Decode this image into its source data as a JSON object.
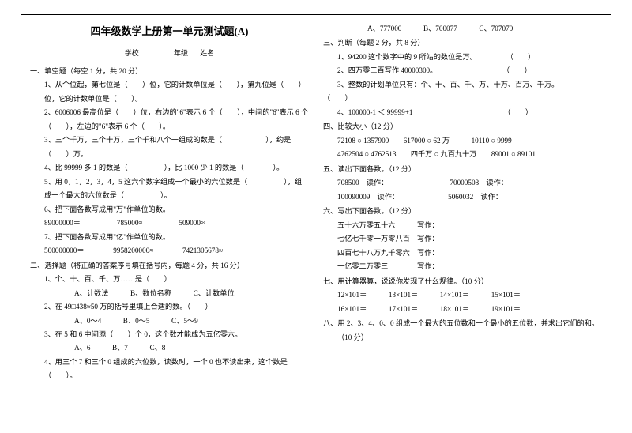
{
  "title": "四年级数学上册第一单元测试题(A)",
  "meta": {
    "school": "学校",
    "grade": "年级",
    "name": "姓名"
  },
  "left": {
    "s1": {
      "h": "一、填空题（每空 1 分，共 20 分）",
      "q1": "1、从个位起，第七位是（　　）位，它的计数单位是（　　），第九位是（　　）位，它的计数单位是（　　）。",
      "q2": "2、6006006 最高位是（　　）位，右边的\"6\"表示 6 个（　　），中间的\"6\"表示 6 个（　　），左边的\"6\"表示 6 个（　　）。",
      "q3": "3、三个千万，三个十万，三个千和八个一组成的数是（　　　　　　），约是（　　）万。",
      "q4": "4、比 99999 多 1 的数是（　　　　　），比 1000 少 1 的数是（　　　　）。",
      "q5": "5、用 0，1，2，3，4，5 这六个数字组成一个最小的六位数是（　　　　　），组成一个最大的六位数是（　　　　　）。",
      "q6": "6、把下面各数写成用\"万\"作单位的数。",
      "q6a": "89000000＝　　　　　785000≈　　　　　509000≈",
      "q7": "7、把下面各数写成用\"亿\"作单位的数。",
      "q7a": "500000000＝　　　　9958200000≈　　　　7421305678≈"
    },
    "s2": {
      "h": "二、选择题（将正确的答案序号填在括号内，每题 4 分，共 16 分）",
      "q1": "1、个、十、百、千、万……是（　　）",
      "q1o": "A、计数法　　　B、数位名称　　　C、计数单位",
      "q2": "2、在 49□438≈50 万的括号里填上合适的数。（　　）",
      "q2o": "A、0～4　　　B、0～5　　　C、5～9",
      "q3": "3、在 5 和 6 中间添（　　）个 0，这个数才能成为五亿零六。",
      "q3o": "A、6　　　B、7　　　C、8",
      "q4": "4、用三个 7 和三个 0 组成的六位数，读数时，一个 0 也不读出来，这个数是（　　）。"
    }
  },
  "right": {
    "top": "A、777000　　　B、700077　　　C、707070",
    "s3": {
      "h": "三、判断（每题 2 分，共 8 分）",
      "q1": "1、94200 这个数字中的 9 所站的数位是万。　　　　　（　　）",
      "q2": "2、四万零三百写作 40000300。　　　　　　　　　　（　　）",
      "q3": "3、整数的计划单位只有：个、十、百、千、万、十万、百万、千万。",
      "q3p": "（　　）",
      "q4": "4、100000-1 ＜ 99999+1　　　　　　　　　　　　　（　　）"
    },
    "s4": {
      "h": "四、比较大小（12 分）",
      "r1": "72108 ○ 1357900　　617000 ○ 62 万　　　10110 ○ 9999",
      "r2": "4762504 ○ 4762513　　四千万 ○ 九百九十万　　89001 ○ 89101"
    },
    "s5": {
      "h": "五、读出下面各数。（12 分）",
      "r1": "708500　读作：　　　　　　　　　70000508　读作：",
      "r2": "100090009　读作：　　　　　　　 5060032　读作："
    },
    "s6": {
      "h": "六、写出下面各数。（12 分）",
      "r1": "五十六万零五十六　　　写作：",
      "r2": "七亿七千零一万零八百　写作：",
      "r3": "四百七十八万九千零六　写作：",
      "r4": "一亿零二万零三　　　　写作："
    },
    "s7": {
      "h": "七、用计算器算，说说你发现了什么规律。（10 分）",
      "r1": "12×101＝　　　13×101＝　　　14×101＝　　　15×101＝",
      "r2": "16×101＝　　　17×101＝　　　18×101＝　　　19×101＝"
    },
    "s8": {
      "h": "八、用 2、3、4、0、0 组成一个最大的五位数和一个最小的五位数，并求出它们的和。",
      "r1": "（10 分）"
    }
  }
}
